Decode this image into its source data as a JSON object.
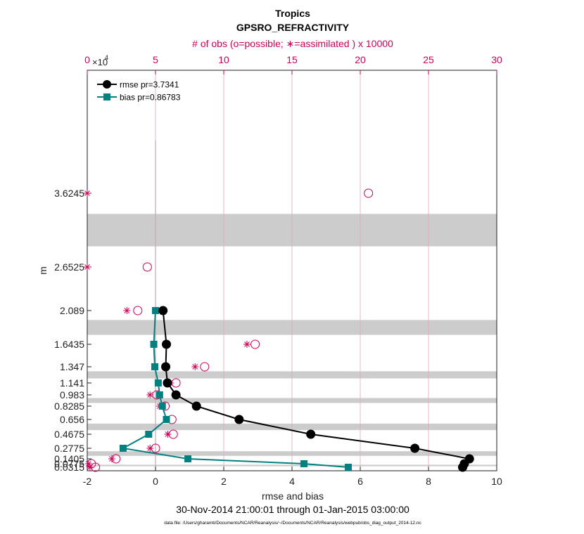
{
  "chart_data": {
    "type": "line",
    "title": "Tropics",
    "subtitle": "GPSRO_REFRACTIVITY",
    "xlabel": "rmse and bias",
    "ylabel": "m",
    "x2label": "# of obs (o=possible; ∗=assimilated ) x 10000",
    "x2_multiplier_label": "×10",
    "x2_multiplier_exp": "4",
    "time_range": "30-Nov-2014 21:00:01 through 01-Jan-2015 03:00:00",
    "footnote": "data file: /Users/gharamti/Documents/NCAR/Reanalysis/~/Documents/NCAR/Reanalysis/webpub/obs_diag_output_2014-12.nc",
    "xlim": [
      -2,
      10
    ],
    "x2lim": [
      0,
      30
    ],
    "xticks": [
      -2,
      0,
      2,
      4,
      6,
      8,
      10
    ],
    "x2ticks": [
      0,
      5,
      10,
      15,
      20,
      25,
      30
    ],
    "x2tick_labels": [
      "0",
      "5",
      "10",
      "15",
      "20",
      "25",
      "30"
    ],
    "xtick_labels": [
      "-2",
      "0",
      "2",
      "4",
      "6",
      "8",
      "10"
    ],
    "ylevels": [
      0.0315,
      0.0775,
      0.1405,
      0.2775,
      0.4675,
      0.656,
      0.8285,
      0.983,
      1.141,
      1.347,
      1.6435,
      2.089,
      2.6525,
      3.6245
    ],
    "ytick_labels": [
      "0.0315",
      "0.0775",
      "0.1405",
      "0.2775",
      "0.4675",
      "0.656",
      "0.8285",
      "0.983",
      "1.141",
      "1.347",
      "1.6435",
      "2.089",
      "2.6525",
      "3.6245"
    ],
    "legend": [
      "rmse pr=3.7341",
      "bias pr=0.86783"
    ],
    "legend_position": "top-left",
    "colors": {
      "rmse": "#000000",
      "bias": "#008080",
      "obs": "#cc0055",
      "band": "#cccccc",
      "zero_line": "#c8a8b0"
    },
    "series": [
      {
        "name": "rmse pr=3.7341",
        "y": [
          0.0315,
          0.0775,
          0.1405,
          0.2775,
          0.4675,
          0.656,
          0.8285,
          0.983,
          1.141,
          1.347,
          1.6435,
          2.089
        ],
        "values": [
          9.0,
          9.05,
          9.2,
          7.6,
          4.55,
          2.45,
          1.2,
          0.6,
          0.35,
          0.3,
          0.32,
          0.22
        ]
      },
      {
        "name": "bias pr=0.86783",
        "y": [
          0.0315,
          0.0775,
          0.1405,
          0.2775,
          0.4675,
          0.656,
          0.8285,
          0.983,
          1.141,
          1.347,
          1.6435,
          2.089
        ],
        "values": [
          5.65,
          4.35,
          0.95,
          -0.95,
          -0.2,
          0.32,
          0.2,
          0.12,
          0.08,
          -0.02,
          -0.05,
          0.0
        ]
      }
    ],
    "obs_possible": {
      "y": [
        0.0315,
        0.0775,
        0.1405,
        0.2775,
        0.4675,
        0.656,
        0.8285,
        0.983,
        1.141,
        1.347,
        1.6435,
        2.089,
        2.6525,
        3.6245
      ],
      "values": [
        0.6,
        0.3,
        2.1,
        5.0,
        6.3,
        6.2,
        5.7,
        5.1,
        6.5,
        8.6,
        12.3,
        3.7,
        4.4,
        20.6
      ]
    },
    "obs_assimilated": {
      "y": [
        0.0315,
        0.0775,
        0.1405,
        0.2775,
        0.4675,
        0.656,
        0.8285,
        0.983,
        1.141,
        1.347,
        1.6435,
        2.089,
        2.6525,
        3.6245
      ],
      "values": [
        0.2,
        0.1,
        1.8,
        4.6,
        5.9,
        5.8,
        5.3,
        4.6,
        6.1,
        7.9,
        11.7,
        2.9,
        0.0,
        0.0
      ]
    },
    "grey_bands": [
      [
        0.0315,
        0.0775
      ],
      [
        0.1405,
        0.2775
      ],
      [
        0.4675,
        0.656
      ],
      [
        0.8285,
        0.983
      ],
      [
        1.141,
        1.347
      ],
      [
        1.6435,
        2.089
      ],
      [
        2.6525,
        3.6245
      ]
    ]
  }
}
